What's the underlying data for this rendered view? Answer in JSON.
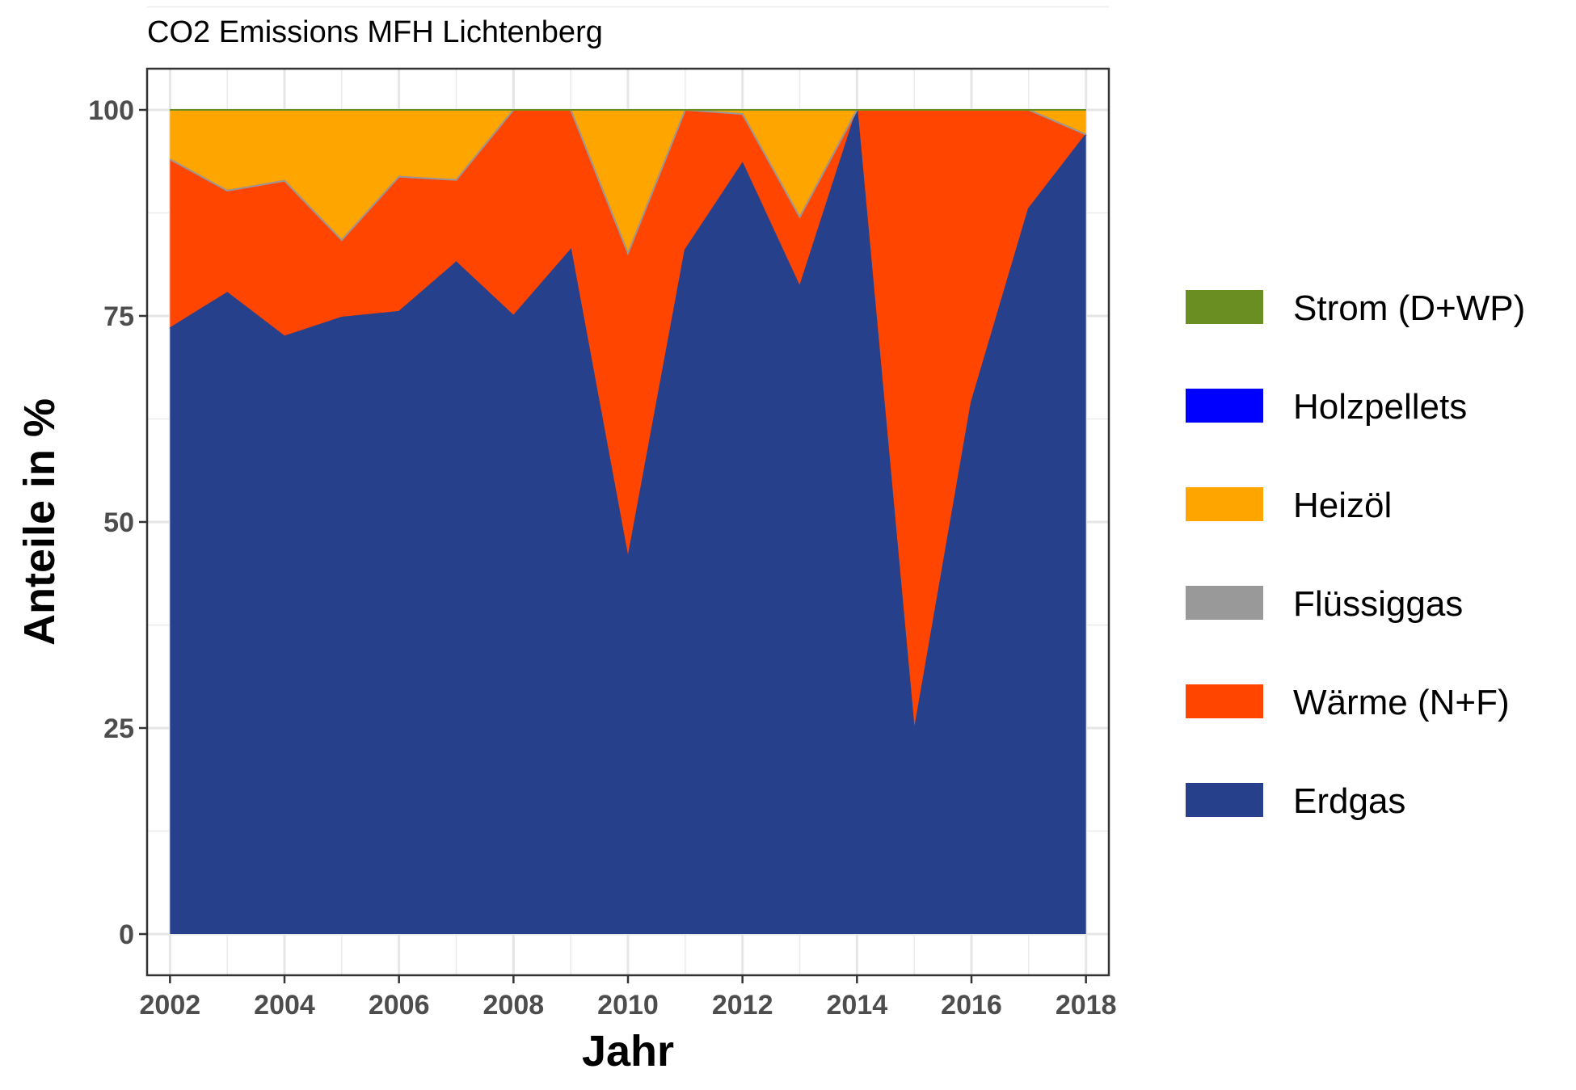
{
  "chart_data": {
    "type": "area",
    "stacked": true,
    "title": "CO2 Emissions MFH Lichtenberg",
    "xlabel": "Jahr",
    "ylabel": "Anteile in %",
    "xlim": [
      2001.6,
      2018.4
    ],
    "ylim": [
      -5,
      105
    ],
    "grid": true,
    "legend_position": "right",
    "x": [
      2002,
      2003,
      2004,
      2005,
      2006,
      2007,
      2008,
      2009,
      2010,
      2011,
      2012,
      2013,
      2014,
      2015,
      2016,
      2017,
      2018
    ],
    "x_ticks": [
      "2002",
      "2004",
      "2006",
      "2008",
      "2010",
      "2012",
      "2014",
      "2016",
      "2018"
    ],
    "x_tick_values": [
      2002,
      2004,
      2006,
      2008,
      2010,
      2012,
      2014,
      2016,
      2018
    ],
    "y_ticks": [
      "0",
      "25",
      "50",
      "75",
      "100"
    ],
    "y_tick_values": [
      0,
      25,
      50,
      75,
      100
    ],
    "series": [
      {
        "name": "Erdgas",
        "color": "#27408B",
        "values": [
          73.5,
          77.8,
          72.5,
          74.8,
          75.5,
          81.5,
          75.0,
          83.0,
          45.5,
          83.0,
          93.5,
          78.5,
          100.0,
          24.5,
          64.5,
          88.0,
          97.0
        ]
      },
      {
        "name": "Wärme (N+F)",
        "color": "#FF4500",
        "values": [
          20.5,
          12.4,
          18.9,
          9.4,
          16.4,
          10.0,
          25.0,
          17.0,
          37.1,
          17.0,
          6.0,
          8.5,
          0.0,
          75.5,
          35.5,
          12.0,
          0.0
        ]
      },
      {
        "name": "Flüssiggas",
        "color": "#999999",
        "values": [
          0,
          0,
          0,
          0,
          0,
          0,
          0,
          0,
          0,
          0,
          0,
          0,
          0,
          0,
          0,
          0,
          0
        ]
      },
      {
        "name": "Heizöl",
        "color": "#FFA500",
        "values": [
          6.0,
          9.8,
          8.6,
          15.8,
          8.1,
          8.5,
          0.0,
          0.0,
          17.4,
          0.0,
          0.5,
          13.0,
          0.0,
          0.0,
          0.0,
          0.0,
          3.0
        ]
      },
      {
        "name": "Holzpellets",
        "color": "#0000FF",
        "values": [
          0,
          0,
          0,
          0,
          0,
          0,
          0,
          0,
          0,
          0,
          0,
          0,
          0,
          0,
          0,
          0,
          0
        ]
      },
      {
        "name": "Strom (D+WP)",
        "color": "#6B8E23",
        "values": [
          0,
          0,
          0,
          0,
          0,
          0,
          0,
          0,
          0,
          0,
          0,
          0,
          0,
          0,
          0,
          0,
          0
        ]
      }
    ],
    "legend_order": [
      "Strom (D+WP)",
      "Holzpellets",
      "Heizöl",
      "Flüssiggas",
      "Wärme (N+F)",
      "Erdgas"
    ]
  }
}
